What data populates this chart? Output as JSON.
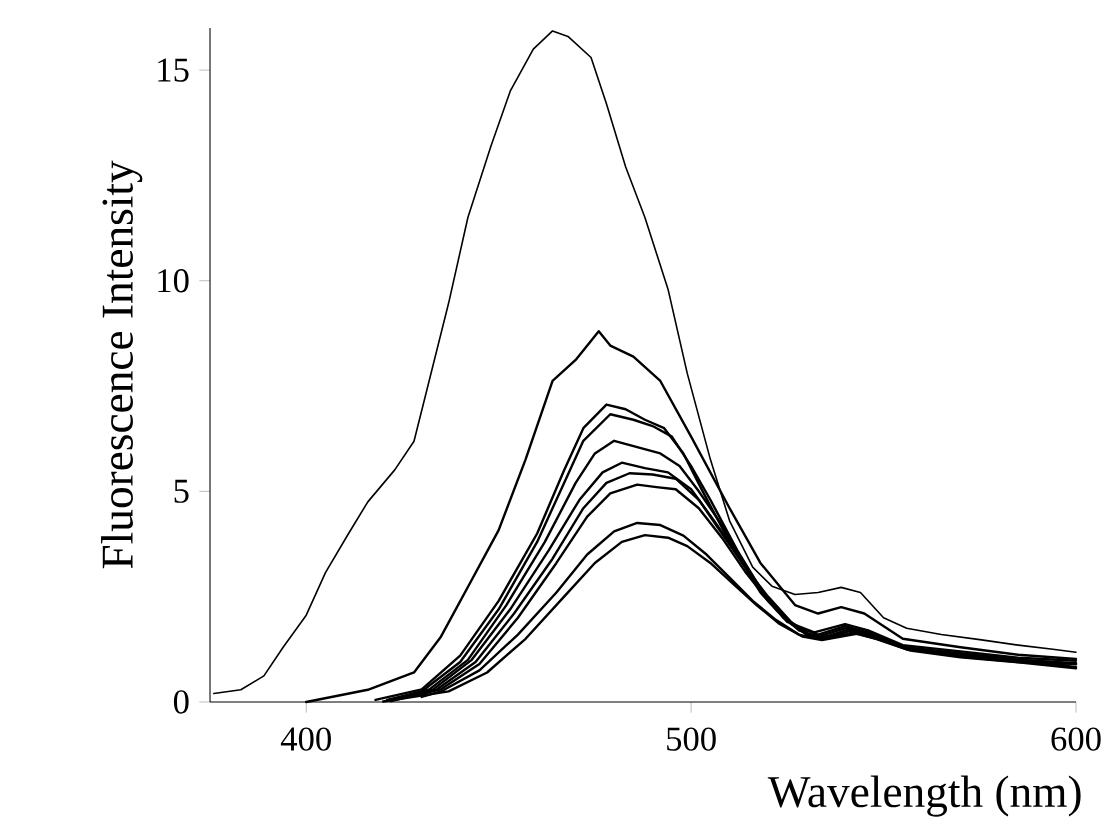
{
  "chart_data": {
    "type": "line",
    "xlabel": "Wavelength (nm)",
    "ylabel": "Fluorescence  Intensity",
    "xlim": [
      375,
      600
    ],
    "ylim": [
      0,
      16
    ],
    "xticks": [
      400,
      500,
      600
    ],
    "yticks": [
      0,
      5,
      10,
      15
    ],
    "grid": false,
    "marker": "none",
    "line_style": "solid",
    "series": [
      {
        "color": "#000000",
        "x": [
          376,
          383,
          389,
          394,
          400,
          405,
          411,
          416,
          423,
          428,
          431,
          437,
          442,
          448,
          453,
          459,
          464,
          468,
          474,
          478,
          483,
          488,
          494,
          499,
          505,
          510,
          516,
          521,
          527,
          533,
          539,
          544,
          550,
          556,
          565,
          575,
          585,
          594,
          600
        ],
        "values": [
          0.2,
          0.29,
          0.62,
          1.3,
          2.06,
          3.07,
          4.0,
          4.75,
          5.51,
          6.19,
          7.28,
          9.47,
          11.5,
          13.2,
          14.5,
          15.5,
          15.93,
          15.8,
          15.3,
          14.2,
          12.7,
          11.5,
          9.8,
          7.8,
          5.76,
          4.3,
          3.2,
          2.75,
          2.55,
          2.6,
          2.72,
          2.6,
          2.0,
          1.75,
          1.6,
          1.48,
          1.35,
          1.25,
          1.18
        ]
      },
      {
        "color": "#000000",
        "x": [
          400,
          416,
          428,
          435,
          442,
          450,
          457,
          464,
          470,
          476,
          479,
          485,
          492,
          500,
          510,
          518,
          527,
          533,
          539,
          545,
          555,
          570,
          585,
          600
        ],
        "values": [
          0.0,
          0.29,
          0.7,
          1.55,
          2.73,
          4.08,
          5.76,
          7.62,
          8.12,
          8.8,
          8.46,
          8.2,
          7.62,
          6.3,
          4.6,
          3.3,
          2.3,
          2.1,
          2.25,
          2.1,
          1.5,
          1.3,
          1.12,
          1.02
        ]
      },
      {
        "color": "#000000",
        "x": [
          418,
          430,
          440,
          450,
          460,
          467,
          472,
          478,
          483,
          488,
          493,
          498,
          503,
          510,
          518,
          525,
          532,
          540,
          546,
          555,
          570,
          585,
          600
        ],
        "values": [
          0.05,
          0.3,
          1.1,
          2.4,
          4.0,
          5.5,
          6.5,
          7.06,
          6.95,
          6.7,
          6.5,
          5.9,
          5.0,
          3.8,
          2.6,
          1.9,
          1.65,
          1.85,
          1.7,
          1.35,
          1.2,
          1.05,
          0.98
        ]
      },
      {
        "color": "#000000",
        "x": [
          421,
          430,
          440,
          450,
          460,
          467,
          472,
          479,
          485,
          490,
          495,
          500,
          505,
          512,
          520,
          527,
          533,
          540,
          546,
          555,
          570,
          585,
          600
        ],
        "values": [
          0.05,
          0.25,
          0.95,
          2.2,
          3.8,
          5.2,
          6.2,
          6.83,
          6.7,
          6.55,
          6.3,
          5.6,
          4.8,
          3.6,
          2.4,
          1.8,
          1.6,
          1.8,
          1.65,
          1.3,
          1.15,
          1.0,
          0.92
        ]
      },
      {
        "color": "#000000",
        "x": [
          422,
          432,
          442,
          452,
          462,
          470,
          475,
          480,
          486,
          492,
          497,
          502,
          508,
          515,
          522,
          528,
          533,
          540,
          547,
          555,
          570,
          585,
          600
        ],
        "values": [
          0.05,
          0.3,
          1.0,
          2.3,
          3.8,
          5.2,
          5.9,
          6.2,
          6.05,
          5.9,
          5.6,
          5.0,
          4.2,
          3.1,
          2.2,
          1.7,
          1.55,
          1.75,
          1.6,
          1.3,
          1.15,
          1.0,
          0.9
        ]
      },
      {
        "color": "#000000",
        "x": [
          425,
          433,
          443,
          453,
          463,
          471,
          477,
          482,
          488,
          494,
          500,
          506,
          512,
          518,
          524,
          530,
          535,
          541,
          547,
          555,
          570,
          585,
          600
        ],
        "values": [
          0.1,
          0.3,
          1.0,
          2.2,
          3.6,
          4.8,
          5.45,
          5.68,
          5.55,
          5.45,
          5.05,
          4.3,
          3.5,
          2.7,
          2.0,
          1.6,
          1.55,
          1.72,
          1.6,
          1.3,
          1.12,
          1.0,
          0.9
        ]
      },
      {
        "color": "#000000",
        "x": [
          428,
          434,
          444,
          454,
          464,
          472,
          478,
          484,
          490,
          496,
          502,
          508,
          514,
          520,
          526,
          531,
          536,
          541,
          548,
          556,
          570,
          585,
          598
        ],
        "values": [
          0.15,
          0.3,
          0.95,
          2.1,
          3.4,
          4.6,
          5.2,
          5.43,
          5.4,
          5.3,
          4.8,
          4.0,
          3.2,
          2.5,
          1.9,
          1.58,
          1.55,
          1.7,
          1.55,
          1.28,
          1.12,
          0.98,
          0.86
        ]
      },
      {
        "color": "#000000",
        "x": [
          422,
          435,
          445,
          455,
          465,
          473,
          479,
          486,
          491,
          496,
          502,
          508,
          514,
          520,
          526,
          531,
          536,
          541,
          548,
          556,
          570,
          585,
          600
        ],
        "values": [
          0.02,
          0.3,
          0.9,
          2.0,
          3.3,
          4.4,
          4.95,
          5.16,
          5.1,
          5.05,
          4.6,
          3.9,
          3.1,
          2.4,
          1.85,
          1.55,
          1.52,
          1.68,
          1.55,
          1.27,
          1.1,
          0.97,
          0.83
        ]
      },
      {
        "color": "#000000",
        "x": [
          430,
          435,
          445,
          455,
          465,
          473,
          480,
          486,
          492,
          498,
          504,
          510,
          516,
          522,
          528,
          533,
          538,
          542,
          548,
          556,
          570,
          585,
          596
        ],
        "values": [
          0.12,
          0.25,
          0.75,
          1.6,
          2.6,
          3.5,
          4.05,
          4.25,
          4.2,
          3.95,
          3.5,
          2.95,
          2.4,
          1.95,
          1.6,
          1.5,
          1.55,
          1.65,
          1.5,
          1.25,
          1.08,
          0.95,
          0.9
        ]
      },
      {
        "color": "#000000",
        "x": [
          420,
          437,
          447,
          457,
          467,
          475,
          482,
          488,
          494,
          499,
          505,
          511,
          517,
          523,
          529,
          534,
          539,
          543,
          549,
          557,
          570,
          585,
          600
        ],
        "values": [
          0.01,
          0.25,
          0.7,
          1.5,
          2.5,
          3.3,
          3.8,
          3.96,
          3.9,
          3.7,
          3.3,
          2.8,
          2.3,
          1.85,
          1.55,
          1.47,
          1.55,
          1.62,
          1.48,
          1.22,
          1.06,
          0.94,
          0.8
        ]
      }
    ]
  }
}
